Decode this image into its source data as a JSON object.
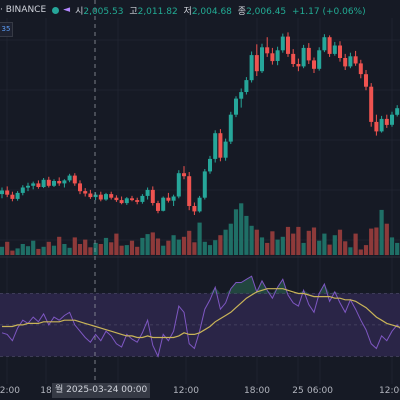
{
  "symbol_bar": {
    "exchange": "· BINANCE",
    "open_key": "시",
    "open": "2,005.53",
    "high_key": "고",
    "high": "2,011.82",
    "low_key": "저",
    "low": "2,004.68",
    "close_key": "종",
    "close": "2,006.45",
    "change": "+1.17 (+0.06%)"
  },
  "left_badge": "35",
  "crosshair_label": "월 2025-03-24   00:00",
  "x_axis_ticks": [
    {
      "label": "12:00"
    },
    {
      "label": "18"
    },
    {
      "label": "12:00"
    },
    {
      "label": "18:00"
    },
    {
      "label": "25"
    },
    {
      "label": "06:00"
    },
    {
      "label": "12:00"
    }
  ],
  "colors": {
    "background": "#161a25",
    "up": "#26a69a",
    "down": "#ef5350",
    "rsi_line": "#7e57c2",
    "rsi_ma": "#c9b458",
    "rsi_band": "#2a2547"
  },
  "chart_data": [
    {
      "type": "candlestick",
      "title": "",
      "candles": [
        [
          2006.5,
          2007.6,
          2005.8,
          2007.1
        ],
        [
          2007.1,
          2007.8,
          2006.0,
          2006.4
        ],
        [
          2006.4,
          2006.9,
          2005.3,
          2005.7
        ],
        [
          2005.7,
          2007.0,
          2005.4,
          2006.7
        ],
        [
          2006.7,
          2008.0,
          2006.3,
          2007.6
        ],
        [
          2007.6,
          2008.4,
          2007.0,
          2007.9
        ],
        [
          2007.9,
          2008.6,
          2007.3,
          2008.3
        ],
        [
          2008.3,
          2008.8,
          2007.4,
          2007.7
        ],
        [
          2007.7,
          2009.2,
          2007.5,
          2008.9
        ],
        [
          2008.9,
          2009.4,
          2007.6,
          2007.9
        ],
        [
          2007.9,
          2009.0,
          2007.7,
          2008.7
        ],
        [
          2008.7,
          2009.3,
          2007.9,
          2008.3
        ],
        [
          2008.3,
          2009.0,
          2007.6,
          2008.8
        ],
        [
          2008.8,
          2009.9,
          2008.5,
          2009.6
        ],
        [
          2009.6,
          2010.0,
          2007.9,
          2008.3
        ],
        [
          2008.3,
          2008.8,
          2006.5,
          2007.0
        ],
        [
          2007.0,
          2007.5,
          2006.1,
          2006.6
        ],
        [
          2006.6,
          2007.2,
          2005.7,
          2006.0
        ],
        [
          2006.0,
          2006.8,
          2005.5,
          2006.4
        ],
        [
          2006.4,
          2006.9,
          2005.3,
          2005.6
        ],
        [
          2005.6,
          2006.7,
          2005.4,
          2006.5
        ],
        [
          2006.5,
          2006.9,
          2005.6,
          2005.9
        ],
        [
          2005.9,
          2006.3,
          2005.2,
          2005.5
        ],
        [
          2005.5,
          2006.1,
          2004.8,
          2005.0
        ],
        [
          2005.0,
          2006.0,
          2004.7,
          2005.8
        ],
        [
          2005.8,
          2006.2,
          2005.3,
          2005.5
        ],
        [
          2005.5,
          2005.9,
          2004.8,
          2005.2
        ],
        [
          2005.2,
          2006.5,
          2004.9,
          2006.2
        ],
        [
          2006.2,
          2007.6,
          2005.6,
          2007.2
        ],
        [
          2007.2,
          2007.8,
          2004.6,
          2005.0
        ],
        [
          2005.0,
          2005.4,
          2003.3,
          2003.7
        ],
        [
          2003.7,
          2006.1,
          2003.6,
          2005.9
        ],
        [
          2005.9,
          2006.7,
          2005.1,
          2005.4
        ],
        [
          2005.4,
          2006.4,
          2004.5,
          2006.1
        ],
        [
          2006.1,
          2010.5,
          2005.8,
          2010.0
        ],
        [
          2010.0,
          2011.2,
          2009.0,
          2009.5
        ],
        [
          2009.5,
          2010.2,
          2003.8,
          2004.5
        ],
        [
          2004.5,
          2005.1,
          2003.0,
          2003.6
        ],
        [
          2003.6,
          2006.2,
          2003.4,
          2005.9
        ],
        [
          2005.9,
          2010.7,
          2005.6,
          2010.3
        ],
        [
          2010.3,
          2012.9,
          2009.9,
          2012.4
        ],
        [
          2012.4,
          2017.2,
          2011.8,
          2016.7
        ],
        [
          2016.7,
          2017.4,
          2012.0,
          2012.6
        ],
        [
          2012.6,
          2015.8,
          2012.1,
          2015.3
        ],
        [
          2015.3,
          2020.3,
          2014.9,
          2019.8
        ],
        [
          2019.8,
          2022.9,
          2019.4,
          2022.5
        ],
        [
          2022.5,
          2024.2,
          2021.0,
          2023.6
        ],
        [
          2023.6,
          2026.1,
          2023.2,
          2025.6
        ],
        [
          2025.6,
          2030.4,
          2025.2,
          2029.8
        ],
        [
          2029.8,
          2031.6,
          2026.3,
          2027.1
        ],
        [
          2027.1,
          2031.7,
          2026.8,
          2031.1
        ],
        [
          2031.1,
          2032.8,
          2029.5,
          2030.1
        ],
        [
          2030.1,
          2031.0,
          2028.2,
          2028.8
        ],
        [
          2028.8,
          2031.2,
          2028.1,
          2030.6
        ],
        [
          2030.6,
          2033.4,
          2030.2,
          2032.9
        ],
        [
          2032.9,
          2033.6,
          2029.5,
          2030.0
        ],
        [
          2030.0,
          2030.8,
          2027.8,
          2028.3
        ],
        [
          2028.3,
          2029.2,
          2027.1,
          2027.9
        ],
        [
          2027.9,
          2031.5,
          2027.6,
          2031.0
        ],
        [
          2031.0,
          2031.8,
          2028.3,
          2028.9
        ],
        [
          2028.9,
          2029.4,
          2026.8,
          2027.5
        ],
        [
          2027.5,
          2031.1,
          2027.2,
          2030.6
        ],
        [
          2030.6,
          2033.3,
          2030.3,
          2032.8
        ],
        [
          2032.8,
          2033.1,
          2029.5,
          2030.0
        ],
        [
          2030.0,
          2032.0,
          2029.7,
          2031.4
        ],
        [
          2031.4,
          2032.1,
          2028.7,
          2029.3
        ],
        [
          2029.3,
          2030.0,
          2027.3,
          2027.9
        ],
        [
          2027.9,
          2030.2,
          2027.6,
          2029.6
        ],
        [
          2029.6,
          2030.5,
          2028.0,
          2028.4
        ],
        [
          2028.4,
          2029.0,
          2025.9,
          2026.6
        ],
        [
          2026.6,
          2027.3,
          2023.9,
          2024.5
        ],
        [
          2024.5,
          2025.1,
          2017.8,
          2018.6
        ],
        [
          2018.6,
          2019.8,
          2016.3,
          2017.0
        ],
        [
          2017.0,
          2019.6,
          2016.8,
          2019.1
        ],
        [
          2019.1,
          2019.8,
          2017.6,
          2018.1
        ],
        [
          2018.1,
          2020.3,
          2017.8,
          2019.8
        ],
        [
          2019.8,
          2021.4,
          2019.5,
          2020.9
        ],
        [
          2020.9,
          2021.9,
          2019.3,
          2019.9
        ],
        [
          2019.9,
          2021.8,
          2019.6,
          2021.2
        ]
      ],
      "volume": [
        1.5,
        2.4,
        0.8,
        1.2,
        2.0,
        1.6,
        2.6,
        1.1,
        1.5,
        2.4,
        1.7,
        3.3,
        2.0,
        1.3,
        3.2,
        2.0,
        2.8,
        1.4,
        2.2,
        2.0,
        3.1,
        2.3,
        3.9,
        1.7,
        1.8,
        2.6,
        1.5,
        3.1,
        3.8,
        4.1,
        3.0,
        1.7,
        2.6,
        3.6,
        2.8,
        3.3,
        4.4,
        2.3,
        5.9,
        2.4,
        1.8,
        2.7,
        3.6,
        4.6,
        5.7,
        8.3,
        9.4,
        7.1,
        5.3,
        4.6,
        3.2,
        2.2,
        4.3,
        2.8,
        3.3,
        5.1,
        3.9,
        5.1,
        2.2,
        4.4,
        5.0,
        2.6,
        3.9,
        1.9,
        3.6,
        4.6,
        2.5,
        1.4,
        3.9,
        1.0,
        1.8,
        4.8,
        5.0,
        8.2,
        5.7,
        3.2,
        2.2,
        3.1,
        2.1
      ],
      "ohlc_legend": {
        "open": 2005.53,
        "high": 2011.82,
        "low": 2004.68,
        "close": 2006.45,
        "change": 1.17,
        "change_pct": 0.06
      }
    },
    {
      "type": "line",
      "title": "",
      "series": [
        {
          "values": [
            45,
            44,
            40,
            48,
            53,
            51,
            55,
            52,
            57,
            50,
            55,
            53,
            56,
            58,
            50,
            46,
            42,
            39,
            44,
            40,
            46,
            43,
            38,
            36,
            44,
            41,
            39,
            45,
            53,
            37,
            30,
            44,
            40,
            46,
            62,
            58,
            38,
            35,
            46,
            60,
            66,
            74,
            60,
            64,
            73,
            77,
            77,
            79,
            81,
            71,
            78,
            72,
            67,
            74,
            79,
            69,
            64,
            62,
            72,
            63,
            58,
            70,
            76,
            65,
            71,
            64,
            58,
            66,
            60,
            53,
            47,
            38,
            35,
            43,
            40,
            46,
            50,
            46,
            49
          ]
        },
        {
          "values": [
            49,
            49,
            49,
            50,
            50,
            51,
            51,
            51,
            52,
            52,
            52,
            52,
            53,
            53,
            53,
            52,
            51,
            50,
            49,
            48,
            47,
            46,
            45,
            44,
            43,
            43,
            42,
            42,
            43,
            42,
            42,
            42,
            42,
            42,
            43,
            45,
            44,
            44,
            45,
            47,
            49,
            52,
            54,
            56,
            58,
            61,
            64,
            67,
            69,
            71,
            72,
            73,
            73,
            73,
            73,
            72,
            71,
            70,
            70,
            69,
            68,
            68,
            68,
            68,
            67,
            67,
            66,
            66,
            65,
            63,
            61,
            58,
            55,
            53,
            51,
            50,
            49,
            48,
            48
          ]
        }
      ]
    }
  ]
}
